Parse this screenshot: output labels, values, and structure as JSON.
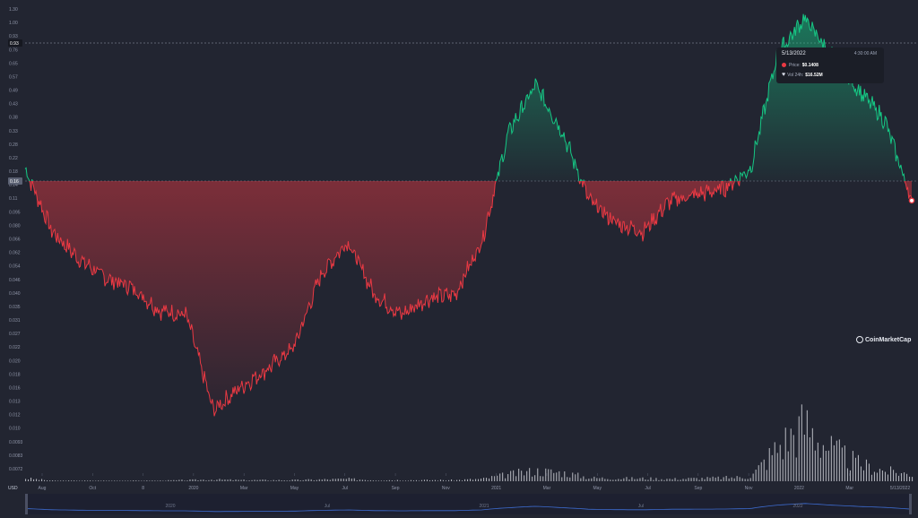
{
  "chart_data": {
    "type": "area",
    "title": "",
    "xlabel": "",
    "ylabel": "",
    "currency_label": "USD",
    "y_scale": "log",
    "y_tick_labels": [
      "1.30",
      "1.00",
      "0.93",
      "0.76",
      "0.65",
      "0.57",
      "0.49",
      "0.43",
      "0.38",
      "0.33",
      "0.28",
      "0.22",
      "0.18",
      "0.14",
      "0.11",
      "0.095",
      "0.080",
      "0.066",
      "0.062",
      "0.054",
      "0.046",
      "0.040",
      "0.035",
      "0.031",
      "0.027",
      "0.022",
      "0.020",
      "0.018",
      "0.016",
      "0.013",
      "0.012",
      "0.010",
      "0.0093",
      "0.0083",
      "0.0072"
    ],
    "x_tick_labels": [
      "Aug",
      "Oct",
      "8",
      "2020",
      "Mar",
      "May",
      "Jul",
      "Sep",
      "Nov",
      "2021",
      "Mar",
      "May",
      "Jul",
      "Sep",
      "Nov",
      "2022",
      "Mar",
      "5/13/2022"
    ],
    "navigator_labels": [
      "2020",
      "Jul",
      "2021",
      "Jul",
      "2022"
    ],
    "reference_price": 0.16,
    "reference_price_label": "0.16",
    "crosshair_price_label": "0.93",
    "x": [
      "2019-08",
      "2019-09",
      "2019-10",
      "2019-11",
      "2019-12",
      "2020-01",
      "2020-02",
      "2020-03",
      "2020-04",
      "2020-05",
      "2020-06",
      "2020-07",
      "2020-08",
      "2020-09",
      "2020-10",
      "2020-11",
      "2020-12",
      "2021-01",
      "2021-02",
      "2021-03",
      "2021-04",
      "2021-05",
      "2021-06",
      "2021-07",
      "2021-08",
      "2021-09",
      "2021-10",
      "2021-11",
      "2021-12",
      "2022-01",
      "2022-02",
      "2022-03",
      "2022-04",
      "2022-05-13"
    ],
    "series": [
      {
        "values": [
          0.2,
          0.1,
          0.074,
          0.06,
          0.054,
          0.042,
          0.04,
          0.014,
          0.018,
          0.022,
          0.028,
          0.062,
          0.09,
          0.05,
          0.04,
          0.048,
          0.05,
          0.09,
          0.3,
          0.5,
          0.3,
          0.14,
          0.11,
          0.1,
          0.14,
          0.15,
          0.16,
          0.2,
          0.7,
          1.05,
          0.7,
          0.48,
          0.34,
          0.1408
        ],
        "volume": [
          0.05,
          0.01,
          0.01,
          0.01,
          0.01,
          0.01,
          0.02,
          0.03,
          0.02,
          0.02,
          0.02,
          0.03,
          0.04,
          0.02,
          0.02,
          0.02,
          0.02,
          0.04,
          0.12,
          0.18,
          0.15,
          0.06,
          0.05,
          0.05,
          0.04,
          0.05,
          0.06,
          0.08,
          0.6,
          1.0,
          0.55,
          0.3,
          0.18,
          0.12
        ]
      }
    ],
    "grid": false,
    "colors": {
      "up": "#16c784",
      "down": "#ea3943",
      "background": "#222531",
      "volume": "#d9dce3",
      "navigator": "#3d6cd1"
    }
  },
  "tooltip": {
    "date": "5/13/2022",
    "time": "4:30:00 AM",
    "price_label": "Price:",
    "price_value": "$0.1408",
    "volume_label": "Vol 24h:",
    "volume_value": "$16.52M"
  },
  "brand": {
    "name": "CoinMarketCap"
  }
}
